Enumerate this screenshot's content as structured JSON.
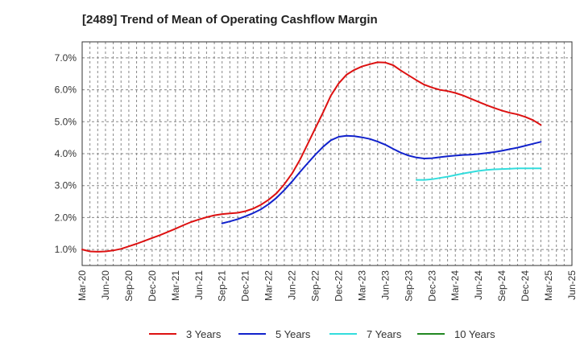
{
  "chart_data": {
    "type": "line",
    "title": "[2489]  Trend of Mean of Operating Cashflow Margin",
    "xlabel": "",
    "ylabel": "",
    "ylim": [
      0.5,
      7.5
    ],
    "yticks": [
      1.0,
      2.0,
      3.0,
      4.0,
      5.0,
      6.0,
      7.0
    ],
    "ytick_labels": [
      "1.0%",
      "2.0%",
      "3.0%",
      "4.0%",
      "5.0%",
      "6.0%",
      "7.0%"
    ],
    "x_tick_labels": [
      "Mar-20",
      "Jun-20",
      "Sep-20",
      "Dec-20",
      "Mar-21",
      "Jun-21",
      "Sep-21",
      "Dec-21",
      "Mar-22",
      "Jun-22",
      "Sep-22",
      "Dec-22",
      "Mar-23",
      "Jun-23",
      "Sep-23",
      "Dec-23",
      "Mar-24",
      "Jun-24",
      "Sep-24",
      "Dec-24",
      "Mar-25",
      "Jun-25"
    ],
    "x_month_range": [
      0,
      63
    ],
    "grid": true,
    "legend_position": "bottom",
    "series": [
      {
        "name": "3 Years",
        "color": "#dd1111",
        "points": [
          [
            0,
            1.0
          ],
          [
            1,
            0.94
          ],
          [
            2,
            0.93
          ],
          [
            3,
            0.94
          ],
          [
            4,
            0.97
          ],
          [
            5,
            1.02
          ],
          [
            6,
            1.1
          ],
          [
            7,
            1.18
          ],
          [
            8,
            1.27
          ],
          [
            9,
            1.36
          ],
          [
            10,
            1.45
          ],
          [
            11,
            1.55
          ],
          [
            12,
            1.65
          ],
          [
            13,
            1.76
          ],
          [
            14,
            1.86
          ],
          [
            15,
            1.94
          ],
          [
            16,
            2.01
          ],
          [
            17,
            2.07
          ],
          [
            18,
            2.11
          ],
          [
            19,
            2.13
          ],
          [
            20,
            2.15
          ],
          [
            21,
            2.2
          ],
          [
            22,
            2.28
          ],
          [
            23,
            2.4
          ],
          [
            24,
            2.56
          ],
          [
            25,
            2.76
          ],
          [
            26,
            3.04
          ],
          [
            27,
            3.38
          ],
          [
            28,
            3.8
          ],
          [
            29,
            4.3
          ],
          [
            30,
            4.8
          ],
          [
            31,
            5.3
          ],
          [
            32,
            5.82
          ],
          [
            33,
            6.2
          ],
          [
            34,
            6.47
          ],
          [
            35,
            6.62
          ],
          [
            36,
            6.73
          ],
          [
            37,
            6.8
          ],
          [
            38,
            6.86
          ],
          [
            39,
            6.85
          ],
          [
            40,
            6.77
          ],
          [
            41,
            6.6
          ],
          [
            42,
            6.45
          ],
          [
            43,
            6.3
          ],
          [
            44,
            6.16
          ],
          [
            45,
            6.07
          ],
          [
            46,
            6.0
          ],
          [
            47,
            5.96
          ],
          [
            48,
            5.9
          ],
          [
            49,
            5.82
          ],
          [
            50,
            5.72
          ],
          [
            51,
            5.62
          ],
          [
            52,
            5.52
          ],
          [
            53,
            5.43
          ],
          [
            54,
            5.35
          ],
          [
            55,
            5.28
          ],
          [
            56,
            5.23
          ],
          [
            57,
            5.15
          ],
          [
            58,
            5.05
          ],
          [
            59,
            4.9
          ]
        ]
      },
      {
        "name": "5 Years",
        "color": "#1122cc",
        "points": [
          [
            18,
            1.82
          ],
          [
            19,
            1.88
          ],
          [
            20,
            1.95
          ],
          [
            21,
            2.04
          ],
          [
            22,
            2.14
          ],
          [
            23,
            2.26
          ],
          [
            24,
            2.42
          ],
          [
            25,
            2.62
          ],
          [
            26,
            2.86
          ],
          [
            27,
            3.13
          ],
          [
            28,
            3.42
          ],
          [
            29,
            3.7
          ],
          [
            30,
            3.97
          ],
          [
            31,
            4.22
          ],
          [
            32,
            4.42
          ],
          [
            33,
            4.53
          ],
          [
            34,
            4.56
          ],
          [
            35,
            4.55
          ],
          [
            36,
            4.51
          ],
          [
            37,
            4.46
          ],
          [
            38,
            4.38
          ],
          [
            39,
            4.28
          ],
          [
            40,
            4.15
          ],
          [
            41,
            4.03
          ],
          [
            42,
            3.94
          ],
          [
            43,
            3.88
          ],
          [
            44,
            3.85
          ],
          [
            45,
            3.86
          ],
          [
            46,
            3.89
          ],
          [
            47,
            3.92
          ],
          [
            48,
            3.94
          ],
          [
            49,
            3.96
          ],
          [
            50,
            3.97
          ],
          [
            51,
            3.99
          ],
          [
            52,
            4.02
          ],
          [
            53,
            4.05
          ],
          [
            54,
            4.09
          ],
          [
            55,
            4.14
          ],
          [
            56,
            4.19
          ],
          [
            57,
            4.25
          ],
          [
            58,
            4.31
          ],
          [
            59,
            4.37
          ]
        ]
      },
      {
        "name": "7 Years",
        "color": "#33dddd",
        "points": [
          [
            43,
            3.18
          ],
          [
            44,
            3.18
          ],
          [
            45,
            3.2
          ],
          [
            46,
            3.24
          ],
          [
            47,
            3.28
          ],
          [
            48,
            3.33
          ],
          [
            49,
            3.38
          ],
          [
            50,
            3.42
          ],
          [
            51,
            3.46
          ],
          [
            52,
            3.49
          ],
          [
            53,
            3.51
          ],
          [
            54,
            3.52
          ],
          [
            55,
            3.53
          ],
          [
            56,
            3.54
          ],
          [
            57,
            3.54
          ],
          [
            58,
            3.54
          ],
          [
            59,
            3.54
          ]
        ]
      },
      {
        "name": "10 Years",
        "color": "#228822",
        "points": []
      }
    ]
  }
}
